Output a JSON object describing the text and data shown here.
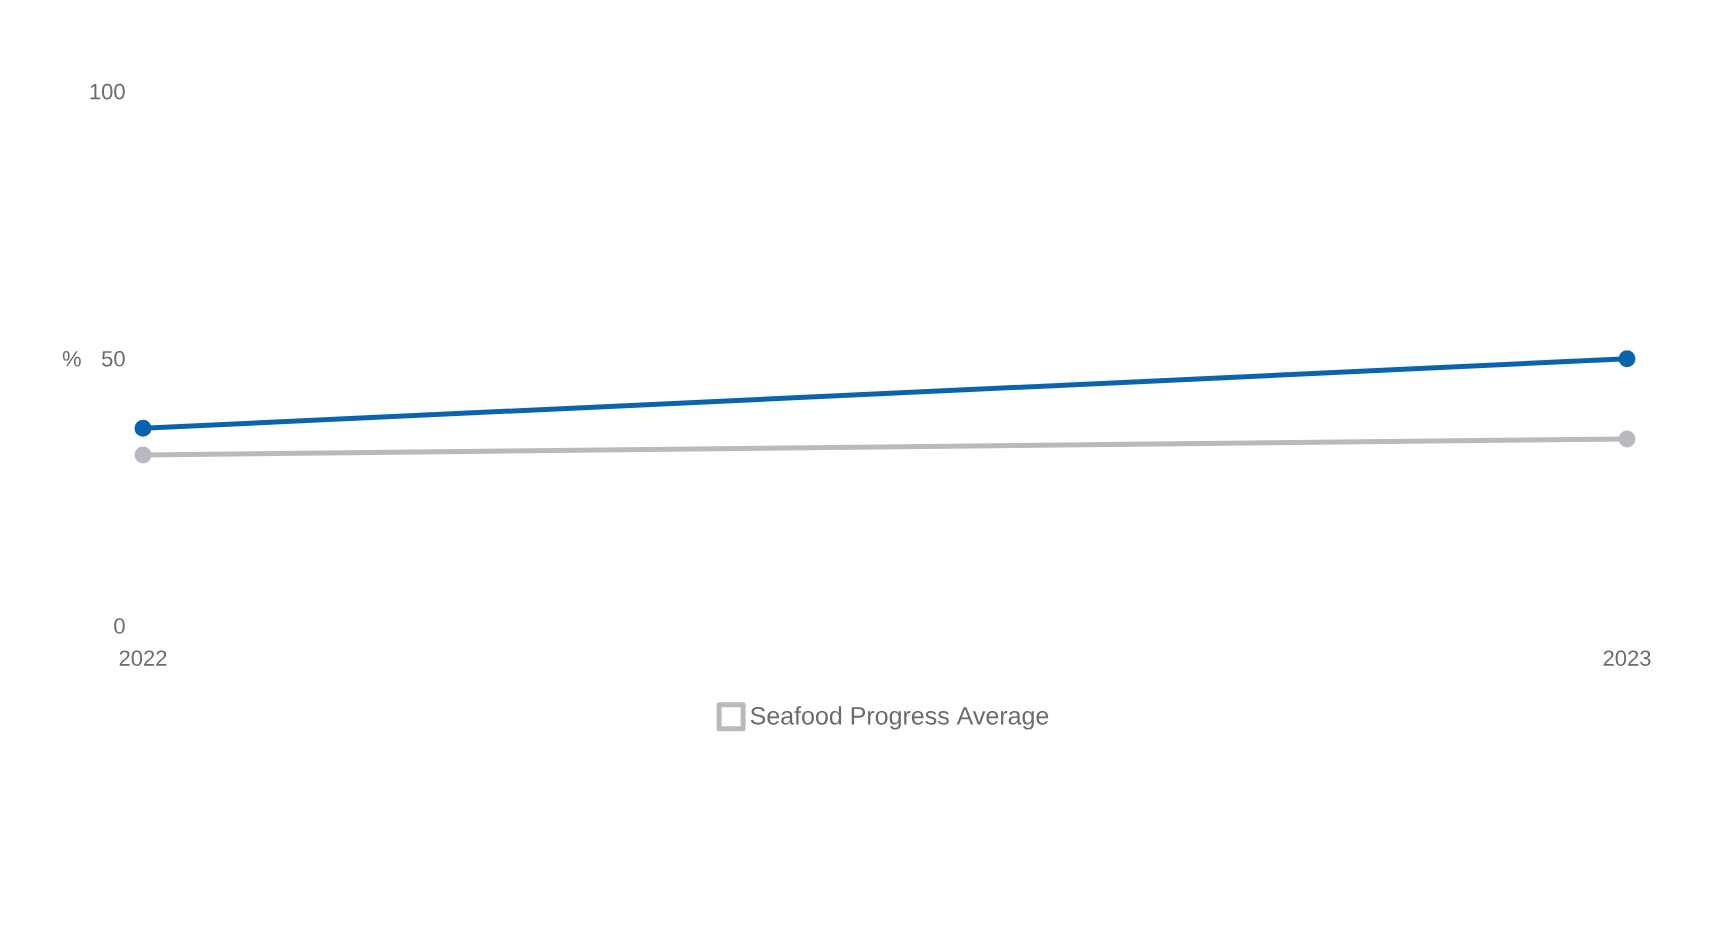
{
  "chart_data": {
    "type": "line",
    "ylabel": "%",
    "categories": [
      "2022",
      "2023"
    ],
    "series": [
      {
        "color": "#0a64ad",
        "values": [
          37,
          50
        ]
      },
      {
        "name": "Seafood Progress Average",
        "color": "#b9b9c0",
        "values": [
          32,
          35
        ]
      }
    ],
    "ylim": [
      0,
      100
    ],
    "yticks": [
      0,
      50,
      100
    ],
    "marker": "circle",
    "line_style": "solid",
    "legend": "bottom"
  }
}
